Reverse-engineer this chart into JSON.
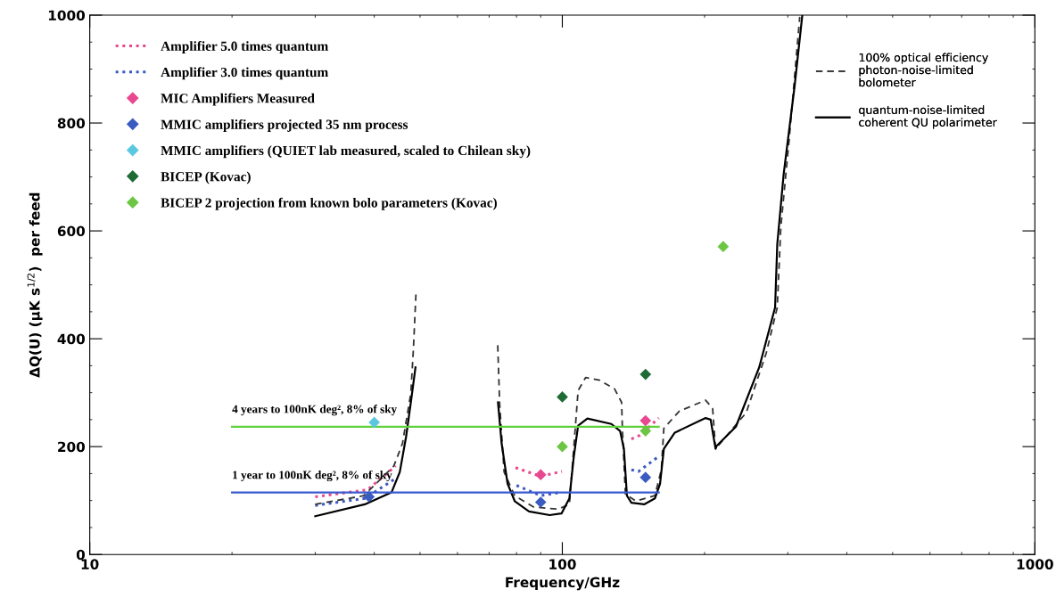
{
  "chart_data": {
    "type": "line",
    "xlabel": "Frequency/GHz",
    "ylabel": "ΔQ(U) (μK s$^{1/2}$)  per feed",
    "log": "x",
    "legend": "top left",
    "xlim": [
      10,
      1000
    ],
    "xticks": [
      10,
      100,
      1000
    ],
    "ylim": [
      0,
      1000
    ],
    "yticks": [
      0,
      200,
      400,
      600,
      800,
      1000
    ],
    "grid": false,
    "series": [
      {
        "name": "Amplifier 5.0 times quantum",
        "color": "#e8488f",
        "line_style": "dotted",
        "marker": "none",
        "x": [
          30,
          38.7,
          44.4,
          null,
          79.6,
          90,
          99.8,
          null,
          140,
          146,
          160
        ],
        "values": [
          107,
          120,
          164,
          null,
          161,
          145,
          154,
          null,
          214,
          221,
          253
        ]
      },
      {
        "name": "Amplifier 3.0 times quantum",
        "color": "#3a5bbf",
        "line_style": "dotted",
        "marker": "none",
        "x": [
          30,
          38.2,
          44.4,
          null,
          80,
          90,
          99,
          null,
          140,
          145,
          160
        ],
        "values": [
          91,
          104,
          141,
          null,
          128,
          109,
          115,
          null,
          157,
          154,
          182
        ]
      },
      {
        "name": "MIC Amplifiers Measured",
        "type": "scatter",
        "color": "#e8488f",
        "marker": "diamond",
        "x": [
          90,
          150
        ],
        "values": [
          148,
          248
        ]
      },
      {
        "name": "MMIC amplifiers projected 35 nm process",
        "type": "scatter",
        "color": "#3a5bbf",
        "marker": "diamond",
        "x": [
          39,
          90,
          150
        ],
        "values": [
          107,
          97,
          143
        ]
      },
      {
        "name": "MMIC amplifiers (QUIET lab measured, scaled to Chilean sky)",
        "type": "scatter",
        "color": "#5bc8e0",
        "marker": "diamond",
        "x": [
          40
        ],
        "values": [
          245
        ]
      },
      {
        "name": "BICEP (Kovac)",
        "type": "scatter",
        "color": "#1e6b35",
        "marker": "diamond",
        "x": [
          100,
          150
        ],
        "values": [
          292,
          334
        ]
      },
      {
        "name": "BICEP 2 projection from known bolo parameters (Kovac)",
        "type": "scatter",
        "color": "#6cc644",
        "marker": "diamond",
        "x": [
          100,
          150,
          219
        ],
        "values": [
          200,
          229,
          571
        ]
      },
      {
        "name": "100% optical efficiency\nphoton-noise-limited\nbolometer",
        "color": "#333333",
        "line_style": "dashed",
        "marker": "none",
        "x": [
          30,
          38,
          44,
          45.9,
          47.8,
          48.4,
          49,
          null,
          73,
          73.7,
          75.3,
          79.3,
          87,
          98,
          103.5,
          105.7,
          108,
          112,
          120,
          129,
          133.5,
          134,
          136,
          143,
          157,
          162,
          164,
          177,
          201,
          208,
          211,
          212,
          245,
          270,
          285,
          290,
          302,
          318
        ],
        "values": [
          93,
          109,
          164,
          206,
          299,
          380,
          482,
          null,
          388,
          278,
          153,
          109,
          88,
          84,
          93,
          196,
          304,
          328,
          323,
          307,
          282,
          234,
          112,
          99,
          109,
          157,
          234,
          266,
          286,
          271,
          196,
          198,
          263,
          373,
          458,
          607,
          769,
          997
        ]
      },
      {
        "name": "quantum-noise-limited\ncoherent QU polarimeter",
        "color": "#000000",
        "line_style": "solid",
        "marker": "none",
        "x": [
          30,
          38.2,
          43.5,
          45.3,
          46.7,
          47.8,
          48.9,
          null,
          73.1,
          74.4,
          76.6,
          79.3,
          85,
          94,
          99.6,
          103.5,
          105.7,
          108,
          113,
          127,
          132.5,
          135,
          137,
          140,
          149,
          157,
          161,
          164,
          173,
          201,
          206,
          211,
          212,
          233,
          261,
          282,
          285,
          294,
          310,
          322
        ],
        "values": [
          71,
          93,
          115,
          153,
          218,
          282,
          347,
          null,
          282,
          206,
          131,
          99,
          80,
          73,
          76,
          104,
          180,
          239,
          252,
          242,
          229,
          196,
          109,
          96,
          93,
          104,
          131,
          196,
          226,
          253,
          250,
          196,
          201,
          237,
          347,
          458,
          575,
          705,
          867,
          1000
        ]
      },
      {
        "name": "4 years to 100nK deg², 8% of sky",
        "color": "#5fd13a",
        "line_style": "solid",
        "marker": "none",
        "x": [
          20,
          160
        ],
        "values": [
          237,
          237
        ]
      },
      {
        "name": "1 year to 100nK deg², 8% of sky",
        "color": "#3a5bcf",
        "line_style": "solid",
        "marker": "none",
        "x": [
          20,
          160
        ],
        "values": [
          115,
          115
        ]
      }
    ]
  }
}
